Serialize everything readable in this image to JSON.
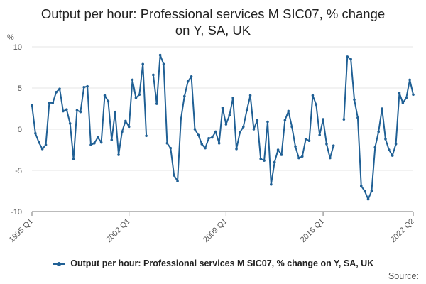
{
  "chart_data": {
    "type": "line",
    "title": "Output per hour: Professional services M SIC07, % change\non Y, SA, UK",
    "ylabel": "%",
    "ylim": [
      -10,
      10
    ],
    "yticks": [
      10,
      5,
      0,
      -5,
      -10
    ],
    "grid": true,
    "legend_position": "bottom",
    "x_tick_labels": [
      "1995 Q1",
      "2002 Q1",
      "2009 Q1",
      "2016 Q1",
      "2022 Q2"
    ],
    "x_start": "1995 Q1",
    "x_end": "2022 Q2",
    "series": [
      {
        "name": "Output per hour: Professional services M SIC07, % change on Y, SA, UK",
        "color": "#206095",
        "values": [
          2.9,
          -0.5,
          -1.6,
          -2.4,
          -1.9,
          3.2,
          3.2,
          4.5,
          4.9,
          2.2,
          2.4,
          0.7,
          -3.6,
          2.3,
          2.1,
          5.1,
          5.2,
          -1.9,
          -1.7,
          -1.0,
          -1.6,
          4.1,
          3.4,
          -1.3,
          2.1,
          -3.1,
          -0.3,
          1.0,
          0.3,
          6.0,
          3.8,
          4.2,
          7.9,
          -0.8,
          null,
          6.6,
          3.1,
          9.0,
          7.9,
          -1.7,
          -2.3,
          -5.6,
          -6.3,
          1.3,
          4.0,
          5.8,
          6.4,
          0.0,
          -0.7,
          -1.8,
          -2.3,
          -1.1,
          -1.0,
          -0.3,
          -1.7,
          2.6,
          0.6,
          1.7,
          3.8,
          -2.4,
          -0.4,
          0.3,
          2.3,
          4.1,
          0.0,
          1.1,
          -3.6,
          -3.8,
          0.9,
          -6.7,
          -4.0,
          -2.5,
          -3.1,
          1.1,
          2.2,
          0.3,
          -2.1,
          -3.5,
          -3.3,
          -1.2,
          -1.4,
          4.1,
          3.0,
          -0.7,
          1.2,
          -1.8,
          -3.5,
          -2.0,
          null,
          null,
          1.2,
          8.8,
          8.5,
          3.6,
          1.4,
          -6.9,
          -7.5,
          -8.5,
          -7.5,
          -2.2,
          -0.3,
          2.5,
          -1.2,
          -2.5,
          -3.2,
          -1.8,
          4.4,
          3.2,
          3.8,
          6.0,
          4.2
        ]
      }
    ]
  },
  "legend": {
    "label": "Output per hour: Professional services M SIC07, % change on Y, SA, UK"
  },
  "source_label": "Source:"
}
